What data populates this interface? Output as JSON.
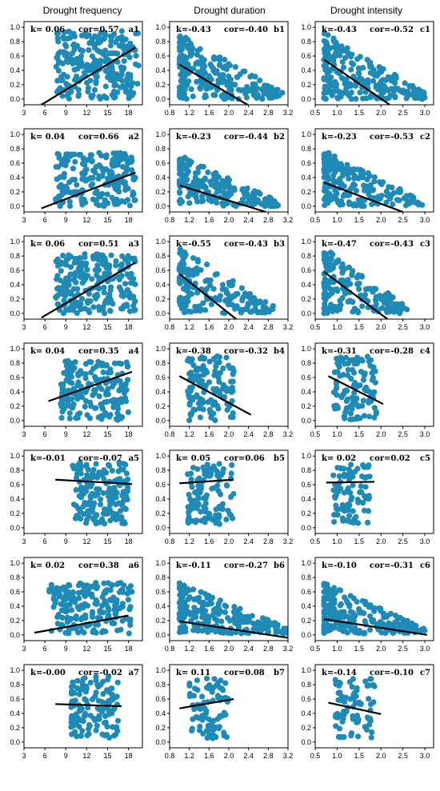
{
  "column_titles": [
    "Drought frequency",
    "Drought duration",
    "Drought intensity"
  ],
  "point_color": "#1f8ab5",
  "line_color": "#000000",
  "chart_data": [
    {
      "panel": "a1",
      "type": "scatter",
      "k": "k= 0.06",
      "cor": "cor=0.57",
      "xlim": [
        3,
        20
      ],
      "ylim": [
        -0.08,
        1.08
      ],
      "xticks": [
        "3",
        "6",
        "9",
        "12",
        "15",
        "18"
      ],
      "yticks": [
        "0.0",
        "0.2",
        "0.4",
        "0.6",
        "0.8",
        "1.0"
      ],
      "x_range": [
        5.5,
        19.5
      ],
      "y_range": [
        0.0,
        0.95
      ],
      "density": 1.0,
      "line": [
        [
          5.5,
          -0.08
        ],
        [
          19.0,
          0.72
        ]
      ]
    },
    {
      "panel": "b1",
      "type": "scatter",
      "k": "k=-0.43",
      "cor": "cor=-0.40",
      "xlim": [
        0.8,
        3.2
      ],
      "ylim": [
        -0.08,
        1.08
      ],
      "xticks": [
        "0.8",
        "1.2",
        "1.6",
        "2.0",
        "2.4",
        "2.8",
        "3.2"
      ],
      "yticks": [
        "0.0",
        "0.2",
        "0.4",
        "0.6",
        "0.8",
        "1.0"
      ],
      "x_range": [
        1.0,
        3.1
      ],
      "y_range": [
        0.0,
        0.93
      ],
      "density": 1.0,
      "decay": true,
      "line": [
        [
          1.0,
          0.48
        ],
        [
          2.38,
          -0.08
        ]
      ]
    },
    {
      "panel": "c1",
      "type": "scatter",
      "k": "k=-0.43",
      "cor": "cor=-0.52",
      "xlim": [
        0.5,
        3.2
      ],
      "ylim": [
        -0.08,
        1.08
      ],
      "xticks": [
        "0.5",
        "1.0",
        "1.5",
        "2.0",
        "2.5",
        "3.0"
      ],
      "yticks": [
        "0.0",
        "0.2",
        "0.4",
        "0.6",
        "0.8",
        "1.0"
      ],
      "x_range": [
        0.7,
        3.0
      ],
      "y_range": [
        0.0,
        0.93
      ],
      "density": 1.0,
      "decay": true,
      "line": [
        [
          0.7,
          0.55
        ],
        [
          2.2,
          -0.08
        ]
      ]
    },
    {
      "panel": "a2",
      "type": "scatter",
      "k": "k= 0.04",
      "cor": "cor=0.66",
      "xlim": [
        3,
        20
      ],
      "ylim": [
        -0.08,
        1.08
      ],
      "xticks": [
        "3",
        "6",
        "9",
        "12",
        "15",
        "18"
      ],
      "yticks": [
        "0.0",
        "0.2",
        "0.4",
        "0.6",
        "0.8",
        "1.0"
      ],
      "x_range": [
        5.5,
        19.0
      ],
      "y_range": [
        0.0,
        0.75
      ],
      "density": 0.8,
      "line": [
        [
          5.5,
          -0.03
        ],
        [
          19.0,
          0.47
        ]
      ]
    },
    {
      "panel": "b2",
      "type": "scatter",
      "k": "k=-0.23",
      "cor": "cor=-0.44",
      "xlim": [
        0.8,
        3.2
      ],
      "ylim": [
        -0.08,
        1.08
      ],
      "xticks": [
        "0.8",
        "1.2",
        "1.6",
        "2.0",
        "2.4",
        "2.8",
        "3.2"
      ],
      "yticks": [
        "0.0",
        "0.2",
        "0.4",
        "0.6",
        "0.8",
        "1.0"
      ],
      "x_range": [
        1.0,
        3.0
      ],
      "y_range": [
        0.0,
        0.72
      ],
      "density": 0.8,
      "decay": true,
      "line": [
        [
          1.0,
          0.29
        ],
        [
          2.75,
          -0.08
        ]
      ]
    },
    {
      "panel": "c2",
      "type": "scatter",
      "k": "k=-0.23",
      "cor": "cor=-0.53",
      "xlim": [
        0.5,
        3.2
      ],
      "ylim": [
        -0.08,
        1.08
      ],
      "xticks": [
        "0.5",
        "1.0",
        "1.5",
        "2.0",
        "2.5",
        "3.0"
      ],
      "yticks": [
        "0.0",
        "0.2",
        "0.4",
        "0.6",
        "0.8",
        "1.0"
      ],
      "x_range": [
        0.7,
        2.95
      ],
      "y_range": [
        0.0,
        0.78
      ],
      "density": 0.8,
      "decay": true,
      "line": [
        [
          0.7,
          0.33
        ],
        [
          2.5,
          -0.08
        ]
      ]
    },
    {
      "panel": "a3",
      "type": "scatter",
      "k": "k= 0.06",
      "cor": "cor=0.51",
      "xlim": [
        3,
        20
      ],
      "ylim": [
        -0.08,
        1.08
      ],
      "xticks": [
        "3",
        "6",
        "9",
        "12",
        "15",
        "18"
      ],
      "yticks": [
        "0.0",
        "0.2",
        "0.4",
        "0.6",
        "0.8",
        "1.0"
      ],
      "x_range": [
        5.5,
        19.0
      ],
      "y_range": [
        0.0,
        0.83
      ],
      "density": 0.9,
      "line": [
        [
          5.5,
          -0.06
        ],
        [
          19.0,
          0.71
        ]
      ]
    },
    {
      "panel": "b3",
      "type": "scatter",
      "k": "k=-0.55",
      "cor": "cor=-0.43",
      "xlim": [
        0.8,
        3.2
      ],
      "ylim": [
        -0.08,
        1.08
      ],
      "xticks": [
        "0.8",
        "1.2",
        "1.6",
        "2.0",
        "2.4",
        "2.8",
        "3.2"
      ],
      "yticks": [
        "0.0",
        "0.2",
        "0.4",
        "0.6",
        "0.8",
        "1.0"
      ],
      "x_range": [
        1.0,
        2.9
      ],
      "y_range": [
        0.0,
        0.93
      ],
      "density": 0.7,
      "decay": true,
      "line": [
        [
          1.0,
          0.55
        ],
        [
          2.15,
          -0.08
        ]
      ]
    },
    {
      "panel": "c3",
      "type": "scatter",
      "k": "k=-0.47",
      "cor": "cor=-0.43",
      "xlim": [
        0.5,
        3.2
      ],
      "ylim": [
        -0.08,
        1.08
      ],
      "xticks": [
        "0.5",
        "1.0",
        "1.5",
        "2.0",
        "2.5",
        "3.0"
      ],
      "yticks": [
        "0.0",
        "0.2",
        "0.4",
        "0.6",
        "0.8",
        "1.0"
      ],
      "x_range": [
        0.7,
        2.6
      ],
      "y_range": [
        0.0,
        0.93
      ],
      "density": 0.7,
      "decay": true,
      "line": [
        [
          0.7,
          0.58
        ],
        [
          2.15,
          -0.08
        ]
      ]
    },
    {
      "panel": "a4",
      "type": "scatter",
      "k": "k= 0.04",
      "cor": "cor=0.35",
      "xlim": [
        3,
        20
      ],
      "ylim": [
        -0.08,
        1.08
      ],
      "xticks": [
        "3",
        "6",
        "9",
        "12",
        "15",
        "18"
      ],
      "yticks": [
        "0.0",
        "0.2",
        "0.4",
        "0.6",
        "0.8",
        "1.0"
      ],
      "x_range": [
        6.5,
        18.0
      ],
      "y_range": [
        0.0,
        0.85
      ],
      "density": 0.7,
      "line": [
        [
          6.5,
          0.27
        ],
        [
          18.5,
          0.68
        ]
      ]
    },
    {
      "panel": "b4",
      "type": "scatter",
      "k": "k=-0.38",
      "cor": "cor=-0.32",
      "xlim": [
        0.8,
        3.2
      ],
      "ylim": [
        -0.08,
        1.08
      ],
      "xticks": [
        "0.8",
        "1.2",
        "1.6",
        "2.0",
        "2.4",
        "2.8",
        "3.2"
      ],
      "yticks": [
        "0.0",
        "0.2",
        "0.4",
        "0.6",
        "0.8",
        "1.0"
      ],
      "x_range": [
        1.0,
        2.1
      ],
      "y_range": [
        0.0,
        0.9
      ],
      "density": 0.5,
      "line": [
        [
          1.0,
          0.62
        ],
        [
          2.45,
          0.08
        ]
      ]
    },
    {
      "panel": "c4",
      "type": "scatter",
      "k": "k=-0.31",
      "cor": "cor=-0.28",
      "xlim": [
        0.5,
        3.2
      ],
      "ylim": [
        -0.08,
        1.08
      ],
      "xticks": [
        "0.5",
        "1.0",
        "1.5",
        "2.0",
        "2.5",
        "3.0"
      ],
      "yticks": [
        "0.0",
        "0.2",
        "0.4",
        "0.6",
        "0.8",
        "1.0"
      ],
      "x_range": [
        0.75,
        1.9
      ],
      "y_range": [
        0.0,
        0.9
      ],
      "density": 0.45,
      "line": [
        [
          0.8,
          0.62
        ],
        [
          2.05,
          0.23
        ]
      ]
    },
    {
      "panel": "a5",
      "type": "scatter",
      "k": "k=-0.01",
      "cor": "cor=-0.07",
      "xlim": [
        3,
        20
      ],
      "ylim": [
        -0.08,
        1.08
      ],
      "xticks": [
        "3",
        "6",
        "9",
        "12",
        "15",
        "18"
      ],
      "yticks": [
        "0.0",
        "0.2",
        "0.4",
        "0.6",
        "0.8",
        "1.0"
      ],
      "x_range": [
        8.5,
        18.0
      ],
      "y_range": [
        0.05,
        0.92
      ],
      "density": 0.7,
      "line": [
        [
          7.5,
          0.67
        ],
        [
          18.5,
          0.61
        ]
      ]
    },
    {
      "panel": "b5",
      "type": "scatter",
      "k": "k= 0.05",
      "cor": "cor=0.06",
      "xlim": [
        0.8,
        3.2
      ],
      "ylim": [
        -0.08,
        1.08
      ],
      "xticks": [
        "0.8",
        "1.2",
        "1.6",
        "2.0",
        "2.4",
        "2.8",
        "3.2"
      ],
      "yticks": [
        "0.0",
        "0.2",
        "0.4",
        "0.6",
        "0.8",
        "1.0"
      ],
      "x_range": [
        1.0,
        2.1
      ],
      "y_range": [
        0.05,
        0.9
      ],
      "density": 0.45,
      "line": [
        [
          1.0,
          0.62
        ],
        [
          2.1,
          0.67
        ]
      ]
    },
    {
      "panel": "c5",
      "type": "scatter",
      "k": "k= 0.02",
      "cor": "cor=0.02",
      "xlim": [
        0.5,
        3.2
      ],
      "ylim": [
        -0.08,
        1.08
      ],
      "xticks": [
        "0.5",
        "1.0",
        "1.5",
        "2.0",
        "2.5",
        "3.0"
      ],
      "yticks": [
        "0.0",
        "0.2",
        "0.4",
        "0.6",
        "0.8",
        "1.0"
      ],
      "x_range": [
        0.75,
        1.75
      ],
      "y_range": [
        0.05,
        0.9
      ],
      "density": 0.35,
      "line": [
        [
          0.75,
          0.63
        ],
        [
          1.85,
          0.64
        ]
      ]
    },
    {
      "panel": "a6",
      "type": "scatter",
      "k": "k= 0.02",
      "cor": "cor=0.38",
      "xlim": [
        3,
        20
      ],
      "ylim": [
        -0.08,
        1.08
      ],
      "xticks": [
        "3",
        "6",
        "9",
        "12",
        "15",
        "18"
      ],
      "yticks": [
        "0.0",
        "0.2",
        "0.4",
        "0.6",
        "0.8",
        "1.0"
      ],
      "x_range": [
        4.5,
        18.5
      ],
      "y_range": [
        0.02,
        0.73
      ],
      "density": 0.8,
      "line": [
        [
          4.5,
          0.03
        ],
        [
          18.0,
          0.27
        ]
      ]
    },
    {
      "panel": "b6",
      "type": "scatter",
      "k": "k=-0.11",
      "cor": "cor=-0.27",
      "xlim": [
        0.8,
        3.2
      ],
      "ylim": [
        -0.08,
        1.08
      ],
      "xticks": [
        "0.8",
        "1.2",
        "1.6",
        "2.0",
        "2.4",
        "2.8",
        "3.2"
      ],
      "yticks": [
        "0.0",
        "0.2",
        "0.4",
        "0.6",
        "0.8",
        "1.0"
      ],
      "x_range": [
        1.0,
        3.2
      ],
      "y_range": [
        0.02,
        0.73
      ],
      "density": 0.9,
      "decay": true,
      "line": [
        [
          1.0,
          0.19
        ],
        [
          3.2,
          -0.04
        ]
      ]
    },
    {
      "panel": "c6",
      "type": "scatter",
      "k": "k=-0.10",
      "cor": "cor=-0.31",
      "xlim": [
        0.5,
        3.2
      ],
      "ylim": [
        -0.08,
        1.08
      ],
      "xticks": [
        "0.5",
        "1.0",
        "1.5",
        "2.0",
        "2.5",
        "3.0"
      ],
      "yticks": [
        "0.0",
        "0.2",
        "0.4",
        "0.6",
        "0.8",
        "1.0"
      ],
      "x_range": [
        0.7,
        3.0
      ],
      "y_range": [
        0.02,
        0.73
      ],
      "density": 0.9,
      "decay": true,
      "line": [
        [
          0.7,
          0.22
        ],
        [
          3.05,
          0.0
        ]
      ]
    },
    {
      "panel": "a7",
      "type": "scatter",
      "k": "k=-0.00",
      "cor": "cor=-0.02",
      "xlim": [
        3,
        20
      ],
      "ylim": [
        -0.08,
        1.08
      ],
      "xticks": [
        "3",
        "6",
        "9",
        "12",
        "15",
        "18"
      ],
      "yticks": [
        "0.0",
        "0.2",
        "0.4",
        "0.6",
        "0.8",
        "1.0"
      ],
      "x_range": [
        8.5,
        16.5
      ],
      "y_range": [
        0.05,
        0.92
      ],
      "density": 0.5,
      "line": [
        [
          7.5,
          0.53
        ],
        [
          17.0,
          0.5
        ]
      ]
    },
    {
      "panel": "b7",
      "type": "scatter",
      "k": "k= 0.11",
      "cor": "cor=0.08",
      "xlim": [
        0.8,
        3.2
      ],
      "ylim": [
        -0.08,
        1.08
      ],
      "xticks": [
        "0.8",
        "1.2",
        "1.6",
        "2.0",
        "2.4",
        "2.8",
        "3.2"
      ],
      "yticks": [
        "0.0",
        "0.2",
        "0.4",
        "0.6",
        "0.8",
        "1.0"
      ],
      "x_range": [
        1.05,
        2.0
      ],
      "y_range": [
        0.05,
        0.9
      ],
      "density": 0.35,
      "line": [
        [
          1.0,
          0.47
        ],
        [
          2.1,
          0.6
        ]
      ]
    },
    {
      "panel": "c7",
      "type": "scatter",
      "k": "k=-0.14",
      "cor": "cor=-0.10",
      "xlim": [
        0.5,
        3.2
      ],
      "ylim": [
        -0.08,
        1.08
      ],
      "xticks": [
        "0.5",
        "1.0",
        "1.5",
        "2.0",
        "2.5",
        "3.0"
      ],
      "yticks": [
        "0.0",
        "0.2",
        "0.4",
        "0.6",
        "0.8",
        "1.0"
      ],
      "x_range": [
        0.8,
        1.85
      ],
      "y_range": [
        0.05,
        0.9
      ],
      "density": 0.3,
      "line": [
        [
          0.8,
          0.55
        ],
        [
          2.0,
          0.39
        ]
      ]
    }
  ]
}
